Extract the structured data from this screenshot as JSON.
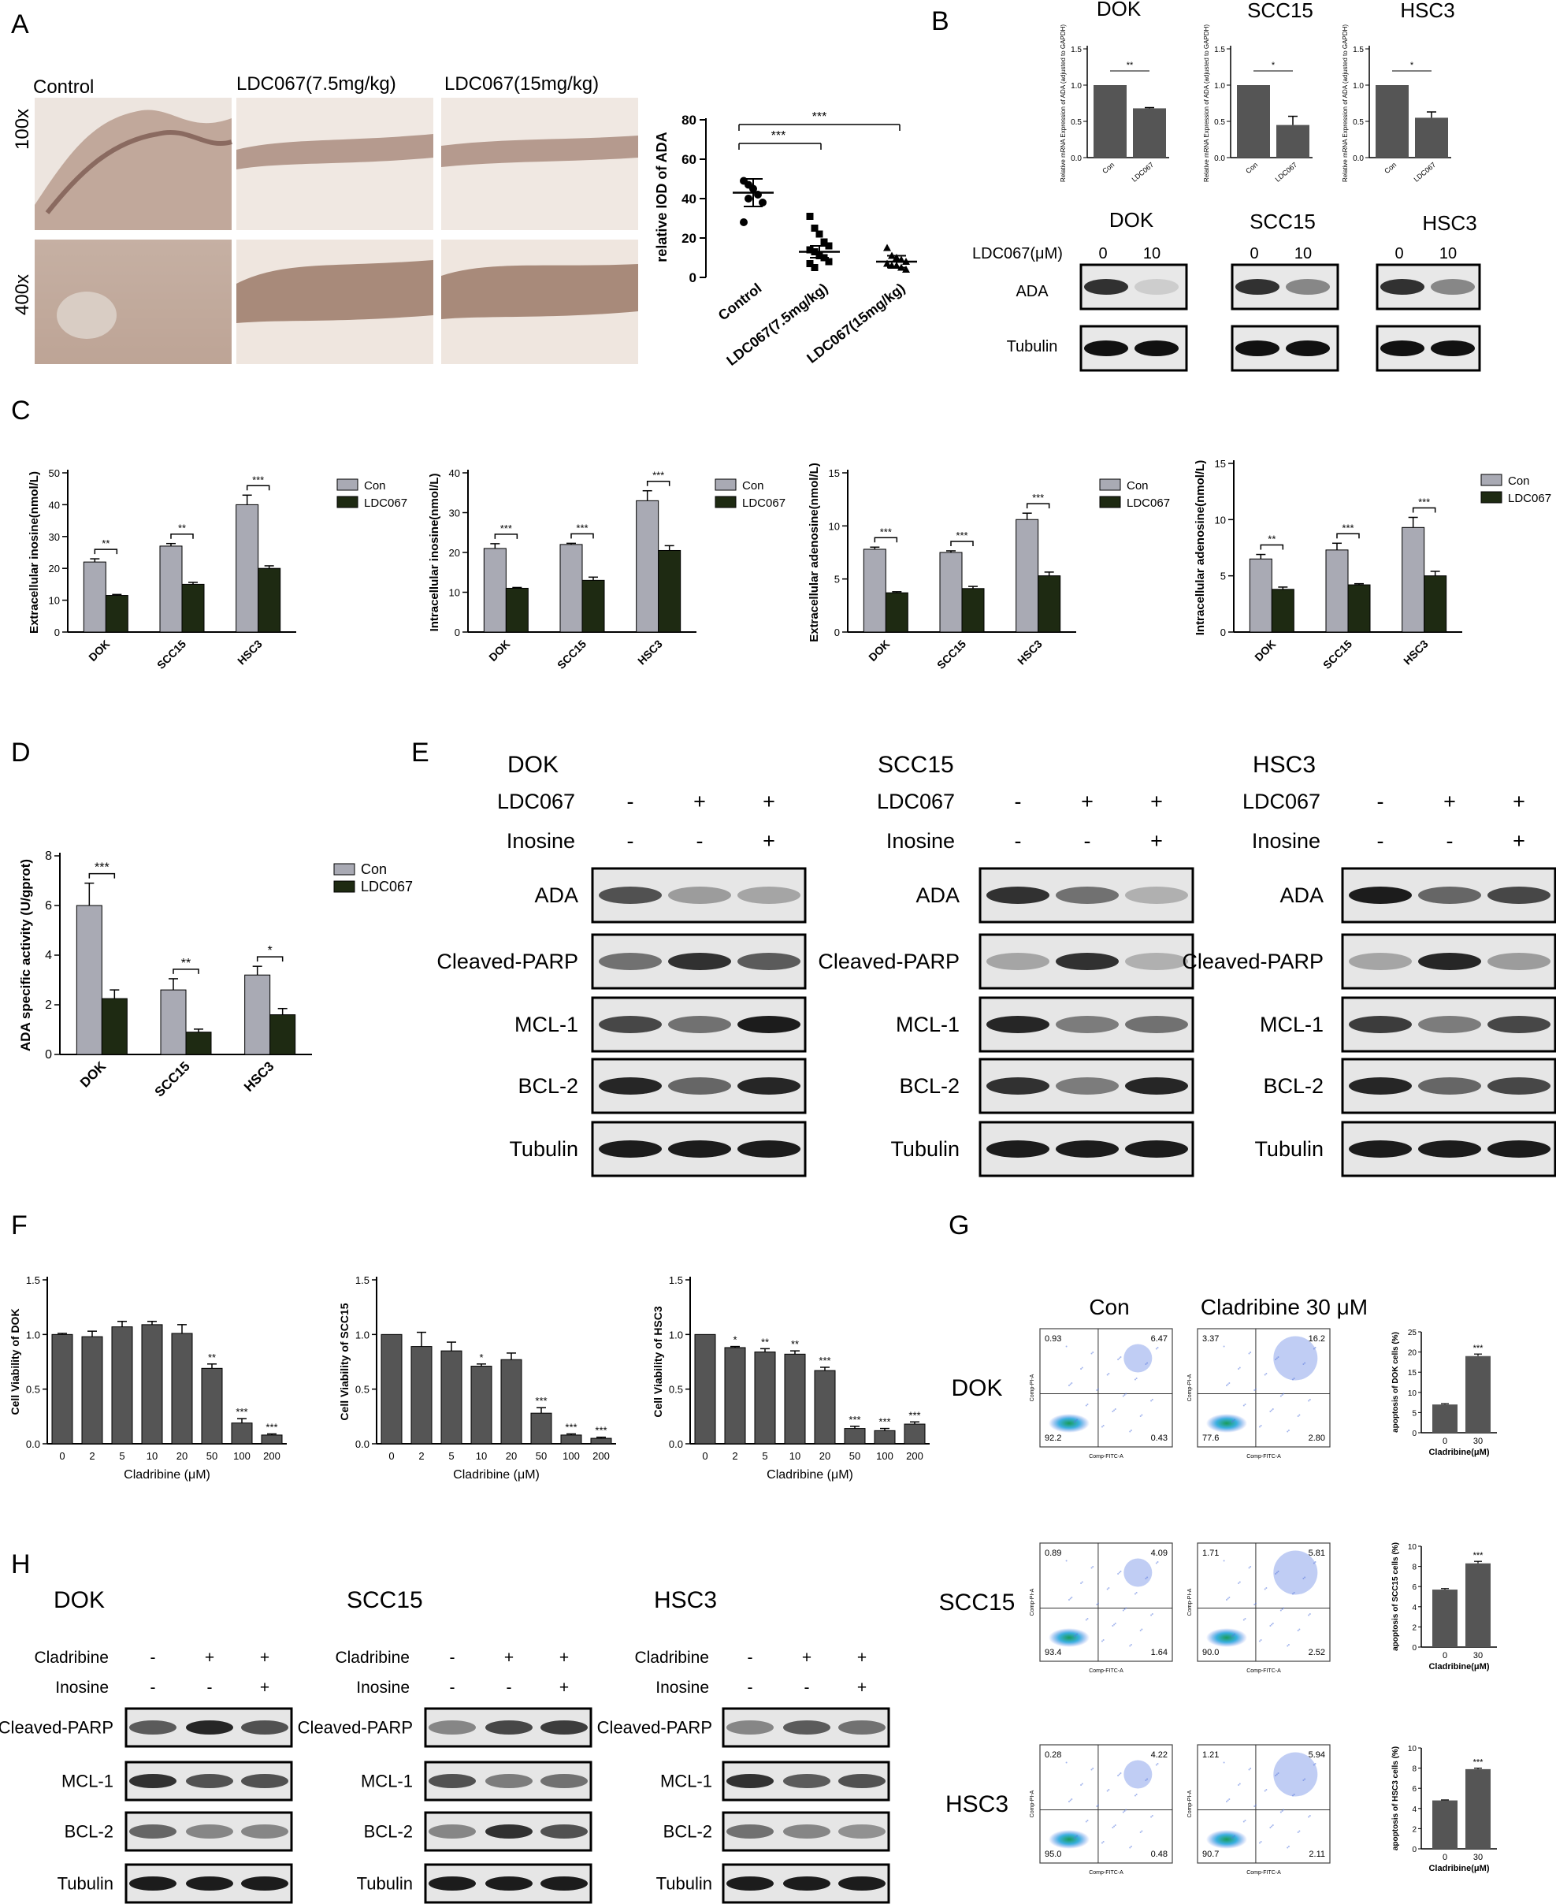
{
  "panels": {
    "A": {
      "letter": "A",
      "conditions": [
        "Control",
        "LDC067(7.5mg/kg)",
        "LDC067(15mg/kg)"
      ],
      "magnifications": [
        "100x",
        "400x"
      ],
      "scatter": {
        "ylabel": "relative IOD of ADA",
        "yticks": [
          "0",
          "20",
          "40",
          "60",
          "80"
        ],
        "ylim": [
          0,
          80
        ],
        "groups": [
          "Control",
          "LDC067(7.5mg/kg)",
          "LDC067(15mg/kg)"
        ],
        "means": [
          43,
          13,
          8
        ],
        "sig": [
          "***",
          "***"
        ]
      }
    },
    "B": {
      "letter": "B",
      "cells": [
        "DOK",
        "SCC15",
        "HSC3"
      ],
      "ylabels": [
        "Relative mRNA Expression of ADA (adjusted to GAPDH)",
        "Relative mRNA Expression of ADA (adjusted to GAPDH)",
        "Relative mRNA Expression of ADA (adjusted to GAPDH)"
      ],
      "yticks": [
        "0.0",
        "0.5",
        "1.0",
        "1.5"
      ],
      "xcats": [
        "Con",
        "LDC067"
      ],
      "sig": [
        "**",
        "*",
        "*"
      ],
      "blot_row_header": "LDC067(μM)",
      "doses": [
        "0",
        "10"
      ],
      "proteins": [
        "ADA",
        "Tubulin"
      ]
    },
    "C": {
      "letter": "C",
      "legend": [
        "Con",
        "LDC067"
      ],
      "ylabels": [
        "Extracellular inosine(nmol/L)",
        "Intracellular inosine(nmol/L)",
        "Extracellular adenosine(nmol/L)",
        "Intracellular adenosine(nmol/L)"
      ],
      "cells": [
        "DOK",
        "SCC15",
        "HSC3"
      ]
    },
    "D": {
      "letter": "D",
      "ylabel": "ADA specific activity (U/gprot)",
      "legend": [
        "Con",
        "LDC067"
      ],
      "cells": [
        "DOK",
        "SCC15",
        "HSC3"
      ],
      "yticks": [
        "0",
        "2",
        "4",
        "6",
        "8"
      ],
      "sig": [
        "***",
        "**",
        "*"
      ]
    },
    "E": {
      "letter": "E",
      "cells": [
        "DOK",
        "SCC15",
        "HSC3"
      ],
      "treat1": "LDC067",
      "treat2": "Inosine",
      "signs1": [
        "-",
        "+",
        "+"
      ],
      "signs2": [
        "-",
        "-",
        "+"
      ],
      "proteins": [
        "ADA",
        "Cleaved-PARP",
        "MCL-1",
        "BCL-2",
        "Tubulin"
      ]
    },
    "F": {
      "letter": "F",
      "ylabels": [
        "Cell Viability of DOK",
        "Cell Viability of SCC15",
        "Cell Viability of HSC3"
      ],
      "xlabel": "Cladribine (μM)",
      "doses": [
        "0",
        "2",
        "5",
        "10",
        "20",
        "50",
        "100",
        "200"
      ],
      "yticks": [
        "0.0",
        "0.5",
        "1.0",
        "1.5"
      ]
    },
    "G": {
      "letter": "G",
      "cols": [
        "Con",
        "Cladribine 30 μM"
      ],
      "rows": [
        "DOK",
        "SCC15",
        "HSC3"
      ],
      "quadrants": [
        [
          [
            "0.93",
            "6.47",
            "92.2",
            "0.43"
          ],
          [
            "3.37",
            "16.2",
            "77.6",
            "2.80"
          ]
        ],
        [
          [
            "0.89",
            "4.09",
            "93.4",
            "1.64"
          ],
          [
            "1.71",
            "5.81",
            "90.0",
            "2.52"
          ]
        ],
        [
          [
            "0.28",
            "4.22",
            "95.0",
            "0.48"
          ],
          [
            "1.21",
            "5.94",
            "90.7",
            "2.11"
          ]
        ]
      ],
      "axis_x": "Comp-FITC-A",
      "axis_y": "Comp-PI-A",
      "bar_ylabels": [
        "apoptosis of DOK cells (%)",
        "apoptosis of SCC15 cells (%)",
        "apoptosis of HSC3 cells (%)"
      ],
      "bar_xlabel": "Cladribine(μM)",
      "bar_xcats": [
        "0",
        "30"
      ],
      "bar_yticks": [
        "0",
        "5",
        "10",
        "15",
        "20",
        "25"
      ],
      "bar_yticks2": [
        "0",
        "2",
        "4",
        "6",
        "8",
        "10"
      ],
      "sig": "***"
    },
    "H": {
      "letter": "H",
      "cells": [
        "DOK",
        "SCC15",
        "HSC3"
      ],
      "treat1": "Cladribine",
      "treat2": "Inosine",
      "signs1": [
        "-",
        "+",
        "+"
      ],
      "signs2": [
        "-",
        "-",
        "+"
      ],
      "proteins": [
        "Cleaved-PARP",
        "MCL-1",
        "BCL-2",
        "Tubulin"
      ]
    }
  },
  "chart_data": [
    {
      "type": "scatter",
      "panel": "A",
      "ylabel": "relative IOD of ADA",
      "ylim": [
        0,
        80
      ],
      "categories": [
        "Control",
        "LDC067(7.5mg/kg)",
        "LDC067(15mg/kg)"
      ],
      "means": [
        43,
        13,
        8
      ],
      "points": [
        [
          49,
          47,
          45,
          42,
          38,
          28,
          40
        ],
        [
          31,
          25,
          22,
          18,
          16,
          14,
          13,
          11,
          10,
          8,
          7,
          5
        ],
        [
          15,
          11,
          10,
          9,
          8,
          7,
          6,
          6,
          5,
          4
        ]
      ]
    },
    {
      "type": "bar",
      "panel": "B-DOK",
      "categories": [
        "Con",
        "LDC067"
      ],
      "values": [
        1.0,
        0.68
      ],
      "errors": [
        0,
        0.01
      ],
      "ylim": [
        0,
        1.5
      ]
    },
    {
      "type": "bar",
      "panel": "B-SCC15",
      "categories": [
        "Con",
        "LDC067"
      ],
      "values": [
        1.0,
        0.45
      ],
      "errors": [
        0,
        0.12
      ],
      "ylim": [
        0,
        1.5
      ]
    },
    {
      "type": "bar",
      "panel": "B-HSC3",
      "categories": [
        "Con",
        "LDC067"
      ],
      "values": [
        1.0,
        0.55
      ],
      "errors": [
        0,
        0.08
      ],
      "ylim": [
        0,
        1.5
      ]
    },
    {
      "type": "bar",
      "panel": "C1",
      "ylabel": "Extracellular inosine(nmol/L)",
      "categories": [
        "DOK",
        "SCC15",
        "HSC3"
      ],
      "ylim": [
        0,
        50
      ],
      "yticks": [
        0,
        10,
        20,
        30,
        40,
        50
      ],
      "series": [
        {
          "name": "Con",
          "values": [
            22,
            27,
            40
          ],
          "errors": [
            1,
            0.8,
            3
          ]
        },
        {
          "name": "LDC067",
          "values": [
            11.5,
            15,
            20
          ],
          "errors": [
            0.3,
            0.6,
            0.8
          ]
        }
      ],
      "sig": [
        "**",
        "**",
        "***"
      ]
    },
    {
      "type": "bar",
      "panel": "C2",
      "ylabel": "Intracellular inosine(nmol/L)",
      "categories": [
        "DOK",
        "SCC15",
        "HSC3"
      ],
      "ylim": [
        0,
        40
      ],
      "yticks": [
        0,
        10,
        20,
        30,
        40
      ],
      "series": [
        {
          "name": "Con",
          "values": [
            21,
            22,
            33
          ],
          "errors": [
            1.2,
            0.3,
            2.5
          ]
        },
        {
          "name": "LDC067",
          "values": [
            11,
            13,
            20.5
          ],
          "errors": [
            0.2,
            0.8,
            1.2
          ]
        }
      ],
      "sig": [
        "***",
        "***",
        "***"
      ]
    },
    {
      "type": "bar",
      "panel": "C3",
      "ylabel": "Extracellular adenosine(nmol/L)",
      "categories": [
        "DOK",
        "SCC15",
        "HSC3"
      ],
      "ylim": [
        0,
        15
      ],
      "yticks": [
        0,
        5,
        10,
        15
      ],
      "series": [
        {
          "name": "Con",
          "values": [
            7.8,
            7.5,
            10.6
          ],
          "errors": [
            0.2,
            0.15,
            0.6
          ]
        },
        {
          "name": "LDC067",
          "values": [
            3.7,
            4.1,
            5.3
          ],
          "errors": [
            0.1,
            0.2,
            0.35
          ]
        }
      ],
      "sig": [
        "***",
        "***",
        "***"
      ]
    },
    {
      "type": "bar",
      "panel": "C4",
      "ylabel": "Intracellular adenosine(nmol/L)",
      "categories": [
        "DOK",
        "SCC15",
        "HSC3"
      ],
      "ylim": [
        0,
        15
      ],
      "yticks": [
        0,
        5,
        10,
        15
      ],
      "series": [
        {
          "name": "Con",
          "values": [
            6.5,
            7.3,
            9.3
          ],
          "errors": [
            0.4,
            0.6,
            0.9
          ]
        },
        {
          "name": "LDC067",
          "values": [
            3.8,
            4.2,
            5.0
          ],
          "errors": [
            0.2,
            0.1,
            0.4
          ]
        }
      ],
      "sig": [
        "**",
        "***",
        "***"
      ]
    },
    {
      "type": "bar",
      "panel": "D",
      "ylabel": "ADA specific activity (U/gprot)",
      "categories": [
        "DOK",
        "SCC15",
        "HSC3"
      ],
      "ylim": [
        0,
        8
      ],
      "yticks": [
        0,
        2,
        4,
        6,
        8
      ],
      "series": [
        {
          "name": "Con",
          "values": [
            6.0,
            2.6,
            3.2
          ],
          "errors": [
            0.9,
            0.45,
            0.35
          ]
        },
        {
          "name": "LDC067",
          "values": [
            2.25,
            0.9,
            1.6
          ],
          "errors": [
            0.35,
            0.12,
            0.25
          ]
        }
      ],
      "sig": [
        "***",
        "**",
        "*"
      ]
    },
    {
      "type": "bar",
      "panel": "F-DOK",
      "ylabel": "Cell Viability of DOK",
      "xlabel": "Cladribine (μM)",
      "categories": [
        "0",
        "2",
        "5",
        "10",
        "20",
        "50",
        "100",
        "200"
      ],
      "values": [
        1.0,
        0.98,
        1.07,
        1.09,
        1.01,
        0.69,
        0.19,
        0.08
      ],
      "errors": [
        0.01,
        0.05,
        0.05,
        0.03,
        0.08,
        0.04,
        0.04,
        0.01
      ],
      "sig": [
        "",
        "",
        "",
        "",
        "",
        "**",
        "***",
        "***"
      ],
      "ylim": [
        0,
        1.5
      ]
    },
    {
      "type": "bar",
      "panel": "F-SCC15",
      "ylabel": "Cell Viability of SCC15",
      "xlabel": "Cladribine (μM)",
      "categories": [
        "0",
        "2",
        "5",
        "10",
        "20",
        "50",
        "100",
        "200"
      ],
      "values": [
        1.0,
        0.89,
        0.85,
        0.71,
        0.77,
        0.28,
        0.08,
        0.05
      ],
      "errors": [
        0,
        0.13,
        0.08,
        0.02,
        0.06,
        0.05,
        0.01,
        0.01
      ],
      "sig": [
        "",
        "",
        "",
        "*",
        "",
        "***",
        "***",
        "***"
      ],
      "ylim": [
        0,
        1.5
      ]
    },
    {
      "type": "bar",
      "panel": "F-HSC3",
      "ylabel": "Cell Viability of HSC3",
      "xlabel": "Cladribine (μM)",
      "categories": [
        "0",
        "2",
        "5",
        "10",
        "20",
        "50",
        "100",
        "200"
      ],
      "values": [
        1.0,
        0.88,
        0.84,
        0.82,
        0.67,
        0.14,
        0.12,
        0.18
      ],
      "errors": [
        0,
        0.01,
        0.03,
        0.03,
        0.03,
        0.02,
        0.02,
        0.02
      ],
      "sig": [
        "",
        "*",
        "**",
        "**",
        "***",
        "***",
        "***",
        "***"
      ],
      "ylim": [
        0,
        1.5
      ]
    },
    {
      "type": "bar",
      "panel": "G-DOK",
      "ylabel": "apoptosis of DOK cells (%)",
      "xlabel": "Cladribine(μM)",
      "categories": [
        "0",
        "30"
      ],
      "values": [
        7.0,
        19.0
      ],
      "errors": [
        0.2,
        0.5
      ],
      "ylim": [
        0,
        25
      ]
    },
    {
      "type": "bar",
      "panel": "G-SCC15",
      "ylabel": "apoptosis of SCC15 cells (%)",
      "xlabel": "Cladribine(μM)",
      "categories": [
        "0",
        "30"
      ],
      "values": [
        5.7,
        8.3
      ],
      "errors": [
        0.1,
        0.2
      ],
      "ylim": [
        0,
        10
      ]
    },
    {
      "type": "bar",
      "panel": "G-HSC3",
      "ylabel": "apoptosis of HSC3 cells (%)",
      "xlabel": "Cladribine(μM)",
      "categories": [
        "0",
        "30"
      ],
      "values": [
        4.8,
        7.9
      ],
      "errors": [
        0.05,
        0.1
      ],
      "ylim": [
        0,
        10
      ]
    }
  ]
}
